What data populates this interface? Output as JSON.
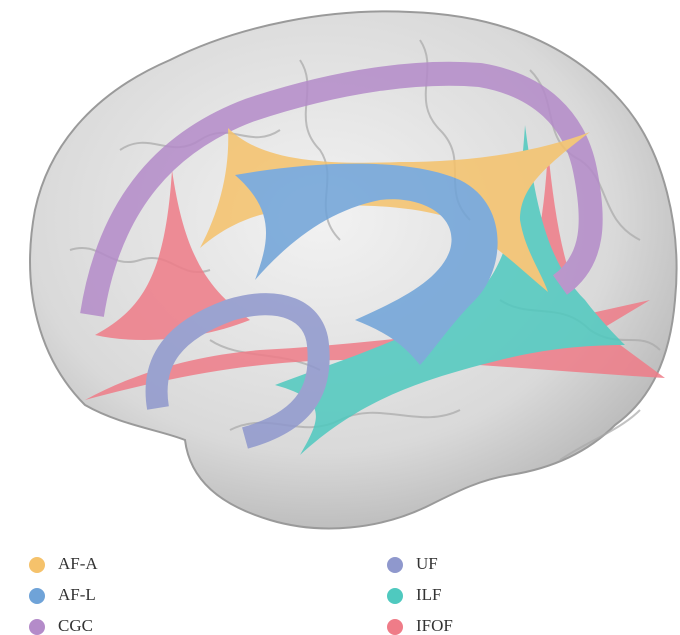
{
  "legend": {
    "items": [
      {
        "label": "AF-A",
        "color": "#f5c26b"
      },
      {
        "label": "AF-L",
        "color": "#6fa3d8"
      },
      {
        "label": "CGC",
        "color": "#b48bc9"
      },
      {
        "label": "UF",
        "color": "#8f98cd"
      },
      {
        "label": "ILF",
        "color": "#4fc9bf"
      },
      {
        "label": "IFOF",
        "color": "#ef7c88"
      }
    ]
  }
}
